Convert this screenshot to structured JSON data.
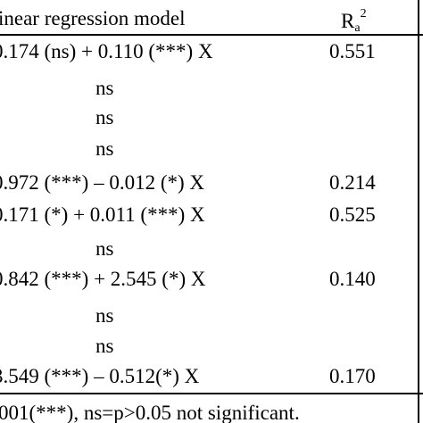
{
  "header": {
    "model_label": "inear regression model",
    "r2_base": "R",
    "r2_sub": "a",
    "r2_sup": "2"
  },
  "rows": [
    {
      "model": "0.174 (ns) + 0.110 (***) X",
      "r2": "0.551"
    },
    {
      "model": "ns",
      "r2": ""
    },
    {
      "model": "ns",
      "r2": ""
    },
    {
      "model": "ns",
      "r2": ""
    },
    {
      "model": "0.972 (***) – 0.012 (*) X",
      "r2": "0.214"
    },
    {
      "model": "0.171 (*) + 0.011 (***) X",
      "r2": "0.525"
    },
    {
      "model": "ns",
      "r2": ""
    },
    {
      "model": "0.842 (***) + 2.545 (*) X",
      "r2": "0.140"
    },
    {
      "model": "ns",
      "r2": ""
    },
    {
      "model": "ns",
      "r2": ""
    },
    {
      "model": "3.549 (***) – 0.512(*) X",
      "r2": "0.170"
    }
  ],
  "footnote": "001(***), ns=p>0.05 not significant."
}
